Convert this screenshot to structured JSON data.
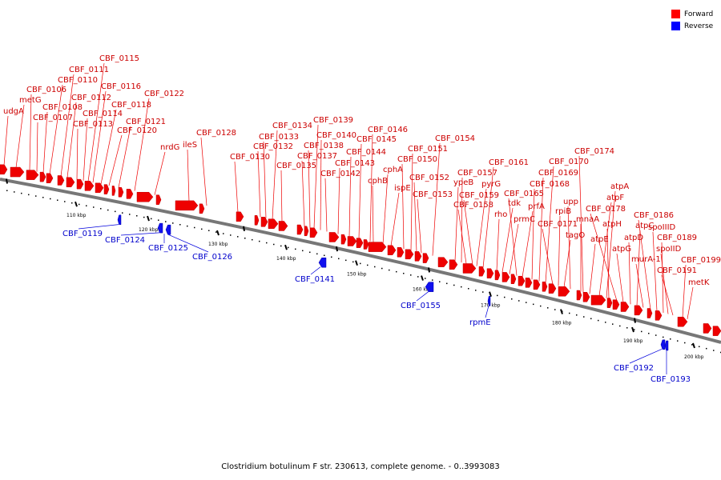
{
  "caption": "Clostridium botulinum F str. 230613, complete genome. - 0..3993083",
  "legend": [
    {
      "label": "Forward",
      "color": "#ff0000"
    },
    {
      "label": "Reverse",
      "color": "#0000ff"
    }
  ],
  "colors": {
    "forward": "#ff0000",
    "reverse": "#0000ff",
    "backbone": "#777777"
  },
  "ticks": [
    "110 kbp",
    "120 kbp",
    "130 kbp",
    "140 kbp",
    "150 kbp",
    "160 kbp",
    "170 kbp",
    "180 kbp",
    "190 kbp",
    "200 kbp"
  ],
  "forward_labels": [
    "udgA",
    "metG",
    "CBF_0106",
    "CBF_0107",
    "CBF_0108",
    "CBF_0110",
    "CBF_0111",
    "CBF_0112",
    "CBF_0113",
    "CBF_0114",
    "CBF_0115",
    "CBF_0116",
    "CBF_0118",
    "CBF_0120",
    "CBF_0121",
    "CBF_0122",
    "nrdG",
    "ileS",
    "CBF_0128",
    "CBF_0130",
    "CBF_0132",
    "CBF_0133",
    "CBF_0134",
    "CBF_0135",
    "CBF_0137",
    "CBF_0138",
    "CBF_0139",
    "CBF_0140",
    "CBF_0142",
    "CBF_0143",
    "CBF_0144",
    "CBF_0145",
    "CBF_0146",
    "cphB",
    "cphA",
    "ispE",
    "CBF_0150",
    "CBF_0151",
    "CBF_0152",
    "CBF_0153",
    "CBF_0154",
    "ypeB",
    "CBF_0157",
    "CBF_0158",
    "CBF_0159",
    "pyrG",
    "CBF_0161",
    "rho",
    "tdk",
    "prmC",
    "CBF_0165",
    "prfA",
    "CBF_0168",
    "CBF_0169",
    "CBF_0170",
    "CBF_0171",
    "rpiB",
    "tagO",
    "upp",
    "mnaA",
    "CBF_0174",
    "atpE",
    "atpF",
    "atpA",
    "atpH",
    "CBF_0178",
    "atpG",
    "atpD",
    "atpC",
    "murA-1",
    "CBF_0186",
    "spoIIID",
    "CBF_0189",
    "spoIID",
    "CBF_0191",
    "CBF_0199",
    "metK"
  ],
  "reverse_labels": [
    "CBF_0119",
    "CBF_0124",
    "CBF_0125",
    "CBF_0126",
    "CBF_0141",
    "CBF_0155",
    "rpmE",
    "CBF_0192",
    "CBF_0193"
  ]
}
